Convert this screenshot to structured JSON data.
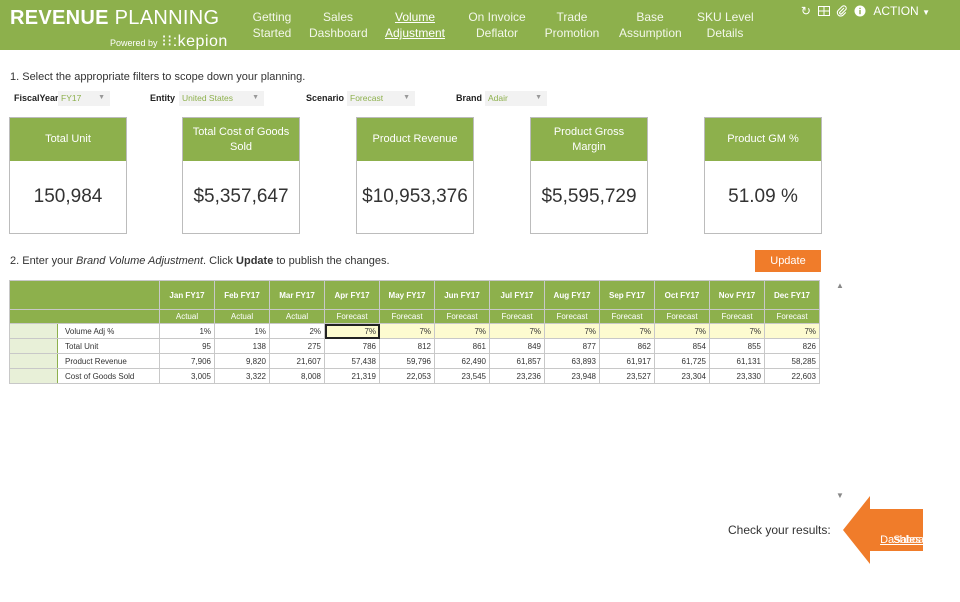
{
  "header": {
    "title_bold": "REVENUE",
    "title_light": " PLANNING",
    "powered_by": "Powered by",
    "logo": "kepion",
    "action_label": "ACTION",
    "nav": [
      {
        "line1": "Getting",
        "line2": "Started",
        "active": false
      },
      {
        "line1": "Sales",
        "line2": "Dashboard",
        "active": false
      },
      {
        "line1": "Volume",
        "line2": "Adjustment",
        "active": true
      },
      {
        "line1": "On Invoice",
        "line2": "Deflator",
        "active": false
      },
      {
        "line1": "Trade",
        "line2": "Promotion",
        "active": false
      },
      {
        "line1": "Base",
        "line2": "Assumption",
        "active": false
      },
      {
        "line1": "SKU Level",
        "line2": "Details",
        "active": false
      }
    ],
    "icons": [
      "refresh-icon",
      "excel-icon",
      "attachment-icon",
      "info-icon"
    ]
  },
  "step1": "1. Select the appropriate filters to scope down your planning.",
  "filters": {
    "fiscal_year": {
      "label": "FiscalYear",
      "value": "FY17"
    },
    "entity": {
      "label": "Entity",
      "value": "United States"
    },
    "scenario": {
      "label": "Scenario",
      "value": "Forecast"
    },
    "brand": {
      "label": "Brand",
      "value": "Adair"
    }
  },
  "kpis": [
    {
      "label": "Total Unit",
      "value": "150,984"
    },
    {
      "label": "Total Cost of Goods Sold",
      "value": "$5,357,647"
    },
    {
      "label": "Product Revenue",
      "value": "$10,953,376"
    },
    {
      "label": "Product Gross Margin",
      "value": "$5,595,729"
    },
    {
      "label": "Product GM %",
      "value": "51.09 %"
    }
  ],
  "step2": {
    "prefix": "2. Enter your ",
    "italic": "Brand Volume Adjustment",
    "middle": ". Click ",
    "bold": "Update",
    "suffix": " to publish the changes."
  },
  "update_label": "Update",
  "table": {
    "months": [
      "Jan FY17",
      "Feb FY17",
      "Mar FY17",
      "Apr FY17",
      "May FY17",
      "Jun FY17",
      "Jul FY17",
      "Aug FY17",
      "Sep FY17",
      "Oct FY17",
      "Nov FY17",
      "Dec FY17"
    ],
    "types": [
      "Actual",
      "Actual",
      "Actual",
      "Forecast",
      "Forecast",
      "Forecast",
      "Forecast",
      "Forecast",
      "Forecast",
      "Forecast",
      "Forecast",
      "Forecast"
    ],
    "rows": [
      {
        "label": "Volume Adj %",
        "values": [
          "1%",
          "1%",
          "2%",
          "7%",
          "7%",
          "7%",
          "7%",
          "7%",
          "7%",
          "7%",
          "7%",
          "7%"
        ]
      },
      {
        "label": "Total Unit",
        "values": [
          "95",
          "138",
          "275",
          "786",
          "812",
          "861",
          "849",
          "877",
          "862",
          "854",
          "855",
          "826"
        ]
      },
      {
        "label": "Product Revenue",
        "values": [
          "7,906",
          "9,820",
          "21,607",
          "57,438",
          "59,796",
          "62,490",
          "61,857",
          "63,893",
          "61,917",
          "61,725",
          "61,131",
          "58,285"
        ]
      },
      {
        "label": "Cost of Goods Sold",
        "values": [
          "3,005",
          "3,322",
          "8,008",
          "21,319",
          "22,053",
          "23,545",
          "23,236",
          "23,948",
          "23,527",
          "23,304",
          "23,330",
          "22,603"
        ]
      }
    ]
  },
  "check_results": "Check your results:",
  "sales_link": {
    "line1": "Sales",
    "line2": "Dashboard"
  },
  "colors": {
    "primary": "#8db04c",
    "accent": "#f07c2a",
    "input": "#fdfbd0"
  }
}
